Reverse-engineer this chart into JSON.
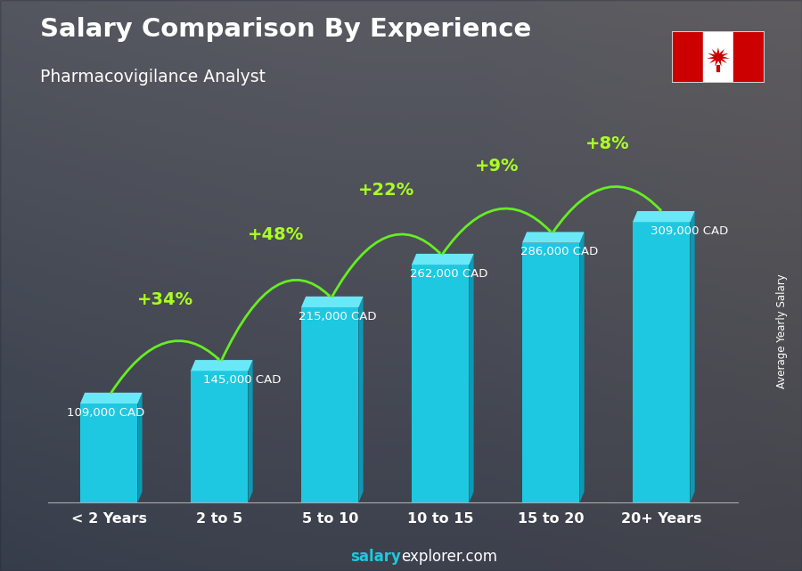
{
  "title": "Salary Comparison By Experience",
  "subtitle": "Pharmacovigilance Analyst",
  "categories": [
    "< 2 Years",
    "2 to 5",
    "5 to 10",
    "10 to 15",
    "15 to 20",
    "20+ Years"
  ],
  "values": [
    109000,
    145000,
    215000,
    262000,
    286000,
    309000
  ],
  "labels": [
    "109,000 CAD",
    "145,000 CAD",
    "215,000 CAD",
    "262,000 CAD",
    "286,000 CAD",
    "309,000 CAD"
  ],
  "pct_changes": [
    "+34%",
    "+48%",
    "+22%",
    "+9%",
    "+8%"
  ],
  "bar_front_color": "#1ec8e0",
  "bar_top_color": "#55dff0",
  "bar_side_color": "#0fa0b8",
  "bg_color_top": "#6a7a8a",
  "bg_color_bottom": "#3a4a5a",
  "title_color": "#ffffff",
  "subtitle_color": "#ffffff",
  "label_color": "#ffffff",
  "pct_color": "#aaff22",
  "arrow_color": "#66ee22",
  "footer_salary_color": "#1ec8e0",
  "footer_explorer_color": "#ffffff",
  "ylabel_text": "Average Yearly Salary",
  "ylim": [
    0,
    390000
  ],
  "bar_width": 0.52
}
